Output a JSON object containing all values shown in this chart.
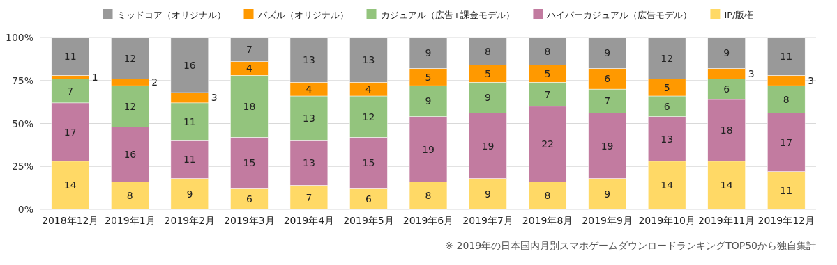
{
  "chart_data": {
    "type": "bar",
    "stacked": true,
    "data_labels": true,
    "grid": true,
    "legend": "top",
    "categories": [
      "2018年12月",
      "2019年1月",
      "2019年2月",
      "2019年3月",
      "2019年4月",
      "2019年5月",
      "2019年6月",
      "2019年7月",
      "2019年8月",
      "2019年9月",
      "2019年10月",
      "2019年11月",
      "2019年12月"
    ],
    "ylim": [
      0,
      50
    ],
    "y2lim": [
      0,
      100
    ],
    "y2ticks": [
      {
        "value": 0,
        "label": "0%"
      },
      {
        "value": 25,
        "label": "25%"
      },
      {
        "value": 50,
        "label": "50%"
      },
      {
        "value": 75,
        "label": "75%"
      },
      {
        "value": 100,
        "label": "100%"
      }
    ],
    "series": [
      {
        "name": "IP/版権",
        "color": "#ffd966",
        "values": [
          14,
          8,
          9,
          6,
          7,
          6,
          8,
          9,
          8,
          9,
          14,
          14,
          11
        ]
      },
      {
        "name": "ハイパーカジュアル（広告モデル）",
        "color": "#c27ba0",
        "values": [
          17,
          16,
          11,
          15,
          13,
          15,
          19,
          19,
          22,
          19,
          13,
          18,
          17
        ]
      },
      {
        "name": "カジュアル（広告+課金モデル）",
        "color": "#93c47d",
        "values": [
          7,
          12,
          11,
          18,
          13,
          12,
          9,
          9,
          7,
          7,
          6,
          6,
          8
        ]
      },
      {
        "name": "パズル（オリジナル）",
        "color": "#ff9900",
        "values": [
          1,
          2,
          3,
          4,
          4,
          4,
          5,
          5,
          5,
          6,
          5,
          3,
          3
        ]
      },
      {
        "name": "ミッドコア（オリジナル）",
        "color": "#999999",
        "values": [
          11,
          12,
          16,
          7,
          13,
          13,
          9,
          8,
          8,
          9,
          12,
          9,
          11
        ]
      }
    ],
    "annotations": [
      "※ 2019年の日本国内月別スマホゲームダウンロードランキングTOP50から独自集計"
    ]
  }
}
